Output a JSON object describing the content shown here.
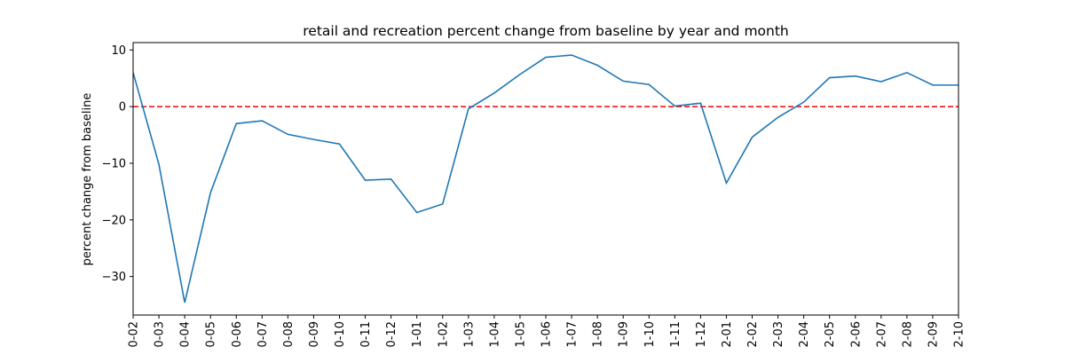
{
  "chart_data": {
    "type": "line",
    "title": "retail and recreation percent change from baseline by year and month",
    "xlabel": "",
    "ylabel": "percent change from baseline",
    "categories": [
      "0-02",
      "0-03",
      "0-04",
      "0-05",
      "0-06",
      "0-07",
      "0-08",
      "0-09",
      "0-10",
      "0-11",
      "0-12",
      "1-01",
      "1-02",
      "1-03",
      "1-04",
      "1-05",
      "1-06",
      "1-07",
      "1-08",
      "1-09",
      "1-10",
      "1-11",
      "1-12",
      "2-01",
      "2-02",
      "2-03",
      "2-04",
      "2-05",
      "2-06",
      "2-07",
      "2-08",
      "2-09",
      "2-10"
    ],
    "series": [
      {
        "color": "#1f77b4",
        "values": [
          6.0,
          -10.2,
          -34.6,
          -15.2,
          -3.0,
          -2.5,
          -4.9,
          -5.8,
          -6.6,
          -13.0,
          -12.8,
          -18.7,
          -17.2,
          -0.4,
          2.4,
          5.7,
          8.7,
          9.1,
          7.3,
          4.5,
          3.9,
          0.1,
          0.6,
          -13.5,
          -5.4,
          -1.9,
          0.8,
          5.1,
          5.4,
          4.4,
          6.0,
          3.8,
          3.8
        ]
      }
    ],
    "reference_line": {
      "y": 0,
      "color": "#ff0000",
      "style": "dashed"
    },
    "ylim": [
      -36.8,
      11.3
    ],
    "yticks": [
      10,
      0,
      -10,
      -20,
      -30
    ],
    "grid": false
  }
}
